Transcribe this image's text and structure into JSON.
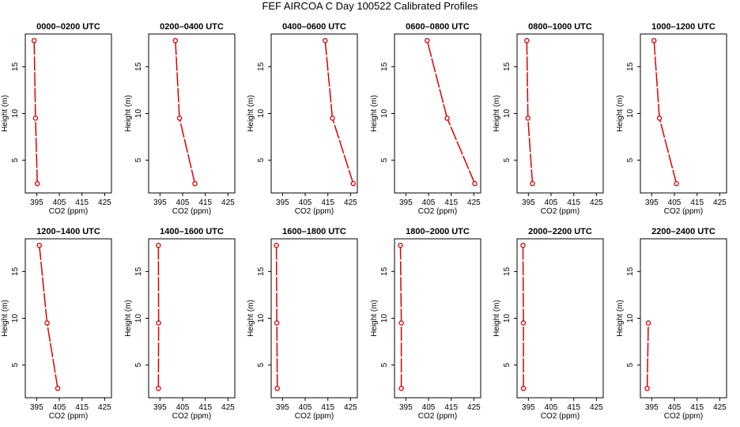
{
  "figure": {
    "title": "FEF AIRCOA C  Day 100522  Calibrated Profiles",
    "line_color": "#dd0000",
    "axis_color": "#000000"
  },
  "chart_data": [
    {
      "type": "line",
      "title": "0000–0200 UTC",
      "xlabel": "CO2 (ppm)",
      "ylabel": "Height (m)",
      "xlim": [
        390,
        428
      ],
      "ylim": [
        1.5,
        18.5
      ],
      "xticks": [
        "395",
        "405",
        "415",
        "425"
      ],
      "yticks": [
        "5",
        "10",
        "15"
      ],
      "series": [
        {
          "name": "profile",
          "points": [
            {
              "co2": 395.3,
              "height": 2.5
            },
            {
              "co2": 394.5,
              "height": 9.5
            },
            {
              "co2": 393.9,
              "height": 17.8
            }
          ]
        }
      ]
    },
    {
      "type": "line",
      "title": "0200–0400 UTC",
      "xlabel": "CO2 (ppm)",
      "ylabel": "Height (m)",
      "xlim": [
        390,
        428
      ],
      "ylim": [
        1.5,
        18.5
      ],
      "xticks": [
        "395",
        "405",
        "415",
        "425"
      ],
      "yticks": [
        "5",
        "10",
        "15"
      ],
      "series": [
        {
          "name": "profile",
          "points": [
            {
              "co2": 410.4,
              "height": 2.5
            },
            {
              "co2": 403.6,
              "height": 9.5
            },
            {
              "co2": 401.8,
              "height": 17.8
            }
          ]
        }
      ]
    },
    {
      "type": "line",
      "title": "0400–0600 UTC",
      "xlabel": "CO2 (ppm)",
      "ylabel": "Height (m)",
      "xlim": [
        390,
        428
      ],
      "ylim": [
        1.5,
        18.5
      ],
      "xticks": [
        "395",
        "405",
        "415",
        "425"
      ],
      "yticks": [
        "5",
        "10",
        "15"
      ],
      "series": [
        {
          "name": "profile",
          "points": [
            {
              "co2": 426.2,
              "height": 2.5
            },
            {
              "co2": 417.0,
              "height": 9.5
            },
            {
              "co2": 413.8,
              "height": 17.8
            }
          ]
        }
      ]
    },
    {
      "type": "line",
      "title": "0600–0800 UTC",
      "xlabel": "CO2 (ppm)",
      "ylabel": "Height (m)",
      "xlim": [
        390,
        428
      ],
      "ylim": [
        1.5,
        18.5
      ],
      "xticks": [
        "395",
        "405",
        "415",
        "425"
      ],
      "yticks": [
        "5",
        "10",
        "15"
      ],
      "series": [
        {
          "name": "profile",
          "points": [
            {
              "co2": 425.4,
              "height": 2.5
            },
            {
              "co2": 413.2,
              "height": 9.5
            },
            {
              "co2": 404.4,
              "height": 17.8
            }
          ]
        }
      ]
    },
    {
      "type": "line",
      "title": "0800–1000 UTC",
      "xlabel": "CO2 (ppm)",
      "ylabel": "Height (m)",
      "xlim": [
        390,
        428
      ],
      "ylim": [
        1.5,
        18.5
      ],
      "xticks": [
        "395",
        "405",
        "415",
        "425"
      ],
      "yticks": [
        "5",
        "10",
        "15"
      ],
      "series": [
        {
          "name": "profile",
          "points": [
            {
              "co2": 396.8,
              "height": 2.5
            },
            {
              "co2": 394.8,
              "height": 9.5
            },
            {
              "co2": 394.3,
              "height": 17.8
            }
          ]
        }
      ]
    },
    {
      "type": "line",
      "title": "1000–1200 UTC",
      "xlabel": "CO2 (ppm)",
      "ylabel": "Height (m)",
      "xlim": [
        390,
        428
      ],
      "ylim": [
        1.5,
        18.5
      ],
      "xticks": [
        "395",
        "405",
        "415",
        "425"
      ],
      "yticks": [
        "5",
        "10",
        "15"
      ],
      "series": [
        {
          "name": "profile",
          "points": [
            {
              "co2": 405.9,
              "height": 2.5
            },
            {
              "co2": 398.4,
              "height": 9.5
            },
            {
              "co2": 396.0,
              "height": 17.8
            }
          ]
        }
      ]
    },
    {
      "type": "line",
      "title": "1200–1400 UTC",
      "xlabel": "CO2 (ppm)",
      "ylabel": "Height (m)",
      "xlim": [
        390,
        428
      ],
      "ylim": [
        1.5,
        18.5
      ],
      "xticks": [
        "395",
        "405",
        "415",
        "425"
      ],
      "yticks": [
        "5",
        "10",
        "15"
      ],
      "series": [
        {
          "name": "profile",
          "points": [
            {
              "co2": 404.3,
              "height": 2.5
            },
            {
              "co2": 399.6,
              "height": 9.5
            },
            {
              "co2": 396.2,
              "height": 17.8
            }
          ]
        }
      ]
    },
    {
      "type": "line",
      "title": "1400–1600 UTC",
      "xlabel": "CO2 (ppm)",
      "ylabel": "Height (m)",
      "xlim": [
        390,
        428
      ],
      "ylim": [
        1.5,
        18.5
      ],
      "xticks": [
        "395",
        "405",
        "415",
        "425"
      ],
      "yticks": [
        "5",
        "10",
        "15"
      ],
      "series": [
        {
          "name": "profile",
          "points": [
            {
              "co2": 394.3,
              "height": 2.5
            },
            {
              "co2": 394.4,
              "height": 9.5
            },
            {
              "co2": 394.3,
              "height": 17.8
            }
          ]
        }
      ]
    },
    {
      "type": "line",
      "title": "1600–1800 UTC",
      "xlabel": "CO2 (ppm)",
      "ylabel": "Height (m)",
      "xlim": [
        390,
        428
      ],
      "ylim": [
        1.5,
        18.5
      ],
      "xticks": [
        "395",
        "405",
        "415",
        "425"
      ],
      "yticks": [
        "5",
        "10",
        "15"
      ],
      "series": [
        {
          "name": "profile",
          "points": [
            {
              "co2": 392.7,
              "height": 2.5
            },
            {
              "co2": 392.5,
              "height": 9.5
            },
            {
              "co2": 392.3,
              "height": 17.8
            }
          ]
        }
      ]
    },
    {
      "type": "line",
      "title": "1800–2000 UTC",
      "xlabel": "CO2 (ppm)",
      "ylabel": "Height (m)",
      "xlim": [
        390,
        428
      ],
      "ylim": [
        1.5,
        18.5
      ],
      "xticks": [
        "395",
        "405",
        "415",
        "425"
      ],
      "yticks": [
        "5",
        "10",
        "15"
      ],
      "series": [
        {
          "name": "profile",
          "points": [
            {
              "co2": 393.0,
              "height": 2.5
            },
            {
              "co2": 393.0,
              "height": 9.5
            },
            {
              "co2": 392.6,
              "height": 17.8
            }
          ]
        }
      ]
    },
    {
      "type": "line",
      "title": "2000–2200 UTC",
      "xlabel": "CO2 (ppm)",
      "ylabel": "Height (m)",
      "xlim": [
        390,
        428
      ],
      "ylim": [
        1.5,
        18.5
      ],
      "xticks": [
        "395",
        "405",
        "415",
        "425"
      ],
      "yticks": [
        "5",
        "10",
        "15"
      ],
      "series": [
        {
          "name": "profile",
          "points": [
            {
              "co2": 392.8,
              "height": 2.5
            },
            {
              "co2": 392.8,
              "height": 9.5
            },
            {
              "co2": 392.6,
              "height": 17.8
            }
          ]
        }
      ]
    },
    {
      "type": "line",
      "title": "2200–2400 UTC",
      "xlabel": "CO2 (ppm)",
      "ylabel": "Height (m)",
      "xlim": [
        390,
        428
      ],
      "ylim": [
        1.5,
        18.5
      ],
      "xticks": [
        "395",
        "405",
        "415",
        "425"
      ],
      "yticks": [
        "5",
        "10",
        "15"
      ],
      "series": [
        {
          "name": "profile",
          "points": [
            {
              "co2": 393.0,
              "height": 2.5
            },
            {
              "co2": 393.5,
              "height": 9.5
            }
          ]
        }
      ]
    }
  ]
}
